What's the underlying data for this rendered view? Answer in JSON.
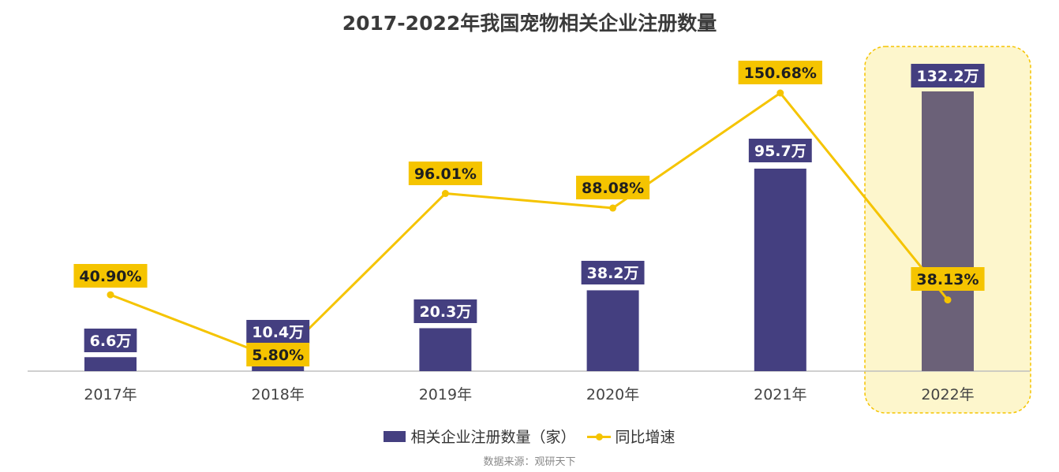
{
  "title": "2017-2022年我国宠物相关企业注册数量",
  "source_note": "数据来源：观研天下",
  "colors": {
    "bar": "#443f80",
    "bar_highlight": "#6b6178",
    "line": "#f5c400",
    "label_bg": "#f5c400",
    "highlight_bg": "#fdf6cc",
    "highlight_border": "#f5c400",
    "axis": "#bfbfbf"
  },
  "chart_data": {
    "type": "bar",
    "title": "2017-2022年我国宠物相关企业注册数量",
    "categories": [
      "2017年",
      "2018年",
      "2019年",
      "2020年",
      "2021年",
      "2022年"
    ],
    "highlight_category": "2022年",
    "series": [
      {
        "name": "相关企业注册数量（家）",
        "type": "bar",
        "unit": "万",
        "values": [
          6.6,
          10.4,
          20.3,
          38.2,
          95.7,
          132.2
        ],
        "labels": [
          "6.6万",
          "10.4万",
          "20.3万",
          "38.2万",
          "95.7万",
          "132.2万"
        ]
      },
      {
        "name": "同比增速",
        "type": "line",
        "unit": "%",
        "values": [
          40.9,
          5.8,
          96.01,
          88.08,
          150.68,
          38.13
        ],
        "labels": [
          "40.90%",
          "5.80%",
          "96.01%",
          "88.08%",
          "150.68%",
          "38.13%"
        ]
      }
    ],
    "legend": {
      "position": "bottom",
      "items": [
        "相关企业注册数量（家）",
        "同比增速"
      ]
    },
    "grid": false
  }
}
